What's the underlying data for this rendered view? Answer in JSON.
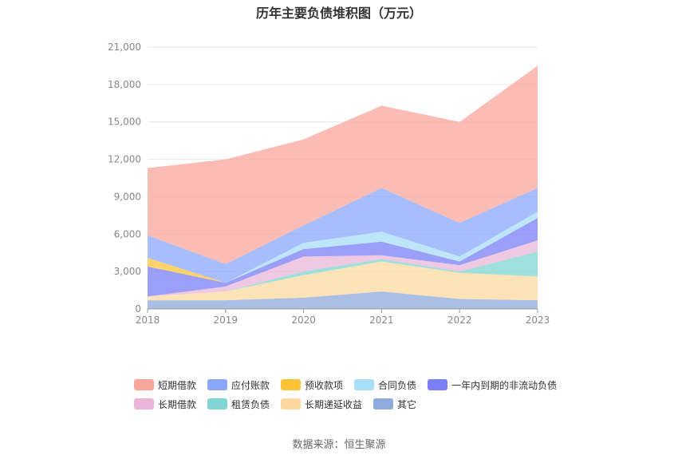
{
  "chart_data": {
    "type": "area",
    "stacked": true,
    "title": "历年主要负债堆积图（万元）",
    "x": [
      "2018",
      "2019",
      "2020",
      "2021",
      "2022",
      "2023"
    ],
    "y_ticks": [
      "0",
      "3,000",
      "6,000",
      "9,000",
      "12,000",
      "15,000",
      "18,000",
      "21,000"
    ],
    "ylim": [
      0,
      21000
    ],
    "grid": true,
    "legend_position": "bottom",
    "series": [
      {
        "name": "其它",
        "color": "#8faadc",
        "values": [
          700,
          700,
          900,
          1400,
          800,
          700
        ]
      },
      {
        "name": "长期递延收益",
        "color": "#fdd9a0",
        "values": [
          300,
          700,
          1800,
          2400,
          2100,
          1900
        ]
      },
      {
        "name": "租赁负债",
        "color": "#7fd6d2",
        "values": [
          0,
          0,
          300,
          200,
          100,
          2000
        ]
      },
      {
        "name": "长期借款",
        "color": "#eab5d8",
        "values": [
          0,
          400,
          1200,
          300,
          500,
          900
        ]
      },
      {
        "name": "一年内到期的非流动负债",
        "color": "#7b7ff5",
        "values": [
          2400,
          300,
          600,
          1100,
          300,
          1800
        ]
      },
      {
        "name": "合同负债",
        "color": "#a8def8",
        "values": [
          0,
          0,
          500,
          800,
          400,
          500
        ]
      },
      {
        "name": "预收款项",
        "color": "#fdc43a",
        "values": [
          700,
          0,
          0,
          0,
          0,
          0
        ]
      },
      {
        "name": "应付账款",
        "color": "#8aa7fb",
        "values": [
          1800,
          1500,
          1400,
          3500,
          2700,
          1900
        ]
      },
      {
        "name": "短期借款",
        "color": "#faa59c",
        "values": [
          5400,
          8400,
          6900,
          6600,
          8100,
          9800
        ]
      }
    ]
  },
  "legend": {
    "row1": [
      {
        "label": "短期借款",
        "color": "#faa59c"
      },
      {
        "label": "应付账款",
        "color": "#8aa7fb"
      },
      {
        "label": "预收款项",
        "color": "#fdc43a"
      },
      {
        "label": "合同负债",
        "color": "#a8def8"
      },
      {
        "label": "一年内到期的非流动负债",
        "color": "#7b7ff5"
      }
    ],
    "row2": [
      {
        "label": "长期借款",
        "color": "#eab5d8"
      },
      {
        "label": "租赁负债",
        "color": "#7fd6d2"
      },
      {
        "label": "长期递延收益",
        "color": "#fdd9a0"
      },
      {
        "label": "其它",
        "color": "#8faadc"
      }
    ]
  },
  "source": "数据来源：恒生聚源"
}
